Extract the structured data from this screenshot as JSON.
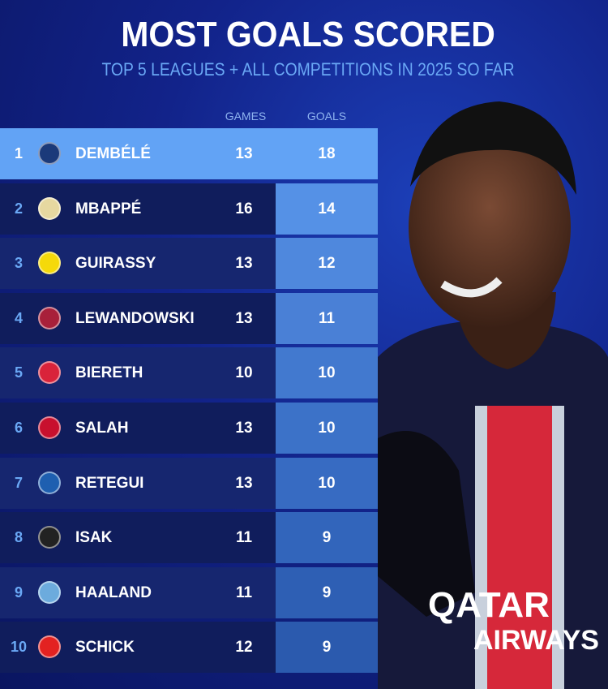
{
  "title": "MOST GOALS SCORED",
  "subtitle": "TOP 5 LEAGUES + ALL COMPETITIONS IN 2025 SO FAR",
  "colors": {
    "highlight": "#62a3f5",
    "accent_text": "#6aa8f5",
    "background": "#12238a"
  },
  "jersey_logo_text": "QATAR AIRWAYS",
  "chart_data": {
    "type": "table",
    "title": "MOST GOALS SCORED",
    "columns": [
      "GAMES",
      "GOALS"
    ],
    "rows": [
      {
        "rank": "1",
        "player": "DEMBÉLÉ",
        "club_icon": "psg-crest",
        "games": "13",
        "goals": "18"
      },
      {
        "rank": "2",
        "player": "MBAPPÉ",
        "club_icon": "real-madrid-crest",
        "games": "16",
        "goals": "14"
      },
      {
        "rank": "3",
        "player": "GUIRASSY",
        "club_icon": "dortmund-crest",
        "games": "13",
        "goals": "12"
      },
      {
        "rank": "4",
        "player": "LEWANDOWSKI",
        "club_icon": "barcelona-crest",
        "games": "13",
        "goals": "11"
      },
      {
        "rank": "5",
        "player": "BIERETH",
        "club_icon": "monaco-crest",
        "games": "10",
        "goals": "10"
      },
      {
        "rank": "6",
        "player": "SALAH",
        "club_icon": "liverpool-crest",
        "games": "13",
        "goals": "10"
      },
      {
        "rank": "7",
        "player": "RETEGUI",
        "club_icon": "atalanta-crest",
        "games": "13",
        "goals": "10"
      },
      {
        "rank": "8",
        "player": "ISAK",
        "club_icon": "newcastle-crest",
        "games": "11",
        "goals": "9"
      },
      {
        "rank": "9",
        "player": "HAALAND",
        "club_icon": "man-city-crest",
        "games": "11",
        "goals": "9"
      },
      {
        "rank": "10",
        "player": "SCHICK",
        "club_icon": "leverkusen-crest",
        "games": "12",
        "goals": "9"
      }
    ]
  }
}
